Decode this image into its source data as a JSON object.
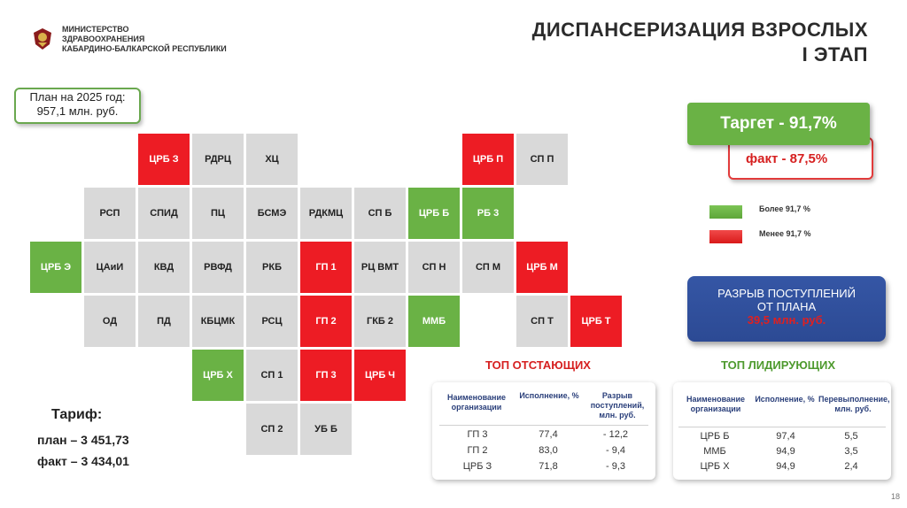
{
  "header": {
    "ministry_line1": "МИНИСТЕРСТВО",
    "ministry_line2": "ЗДРАВООХРАНЕНИЯ",
    "ministry_line3": "КАБАРДИНО-БАЛКАРСКОЙ РЕСПУБЛИКИ",
    "title_line1": "ДИСПАНСЕРИЗАЦИЯ ВЗРОСЛЫХ",
    "title_line2": "I ЭТАП"
  },
  "plan": {
    "line1": "План на 2025 год:",
    "line2": "957,1 млн. руб."
  },
  "map_cells": [
    {
      "label": "ЦРБ З",
      "status": "red"
    },
    {
      "label": "РДРЦ",
      "status": "gray"
    },
    {
      "label": "ХЦ",
      "status": "gray"
    },
    {
      "label": "ЦРБ П",
      "status": "red"
    },
    {
      "label": "СП П",
      "status": "gray"
    },
    {
      "label": "РСП",
      "status": "gray"
    },
    {
      "label": "СПИД",
      "status": "gray"
    },
    {
      "label": "ПЦ",
      "status": "gray"
    },
    {
      "label": "БСМЭ",
      "status": "gray"
    },
    {
      "label": "РДКМЦ",
      "status": "gray"
    },
    {
      "label": "СП Б",
      "status": "gray"
    },
    {
      "label": "ЦРБ Б",
      "status": "green"
    },
    {
      "label": "РБ 3",
      "status": "green"
    },
    {
      "label": "ЦРБ Э",
      "status": "green"
    },
    {
      "label": "ЦАиИ",
      "status": "gray"
    },
    {
      "label": "КВД",
      "status": "gray"
    },
    {
      "label": "РВФД",
      "status": "gray"
    },
    {
      "label": "РКБ",
      "status": "gray"
    },
    {
      "label": "ГП 1",
      "status": "red"
    },
    {
      "label": "РЦ ВМТ",
      "status": "gray"
    },
    {
      "label": "СП Н",
      "status": "gray"
    },
    {
      "label": "СП М",
      "status": "gray"
    },
    {
      "label": "ЦРБ М",
      "status": "red"
    },
    {
      "label": "ОД",
      "status": "gray"
    },
    {
      "label": "ПД",
      "status": "gray"
    },
    {
      "label": "КБЦМК",
      "status": "gray"
    },
    {
      "label": "РСЦ",
      "status": "gray"
    },
    {
      "label": "ГП 2",
      "status": "red"
    },
    {
      "label": "ГКБ 2",
      "status": "gray"
    },
    {
      "label": "ММБ",
      "status": "green"
    },
    {
      "label": "СП Т",
      "status": "gray"
    },
    {
      "label": "ЦРБ Т",
      "status": "red"
    },
    {
      "label": "ЦРБ Х",
      "status": "green"
    },
    {
      "label": "СП 1",
      "status": "gray"
    },
    {
      "label": "ГП 3",
      "status": "red"
    },
    {
      "label": "ЦРБ Ч",
      "status": "red"
    },
    {
      "label": "СП 2",
      "status": "gray"
    },
    {
      "label": "УБ Б",
      "status": "gray"
    }
  ],
  "target": {
    "label": "Таргет  -  91,7%",
    "fact": "факт  -  87,5%"
  },
  "legend": {
    "more": "Более 91,7 %",
    "less": "Менее 91,7 %"
  },
  "gap": {
    "line1": "РАЗРЫВ ПОСТУПЛЕНИЙ",
    "line2": "ОТ ПЛАНА",
    "value": "39,5 млн. руб."
  },
  "laggards": {
    "title": "ТОП ОТСТАЮЩИХ",
    "headers": [
      "Наименование организации",
      "Исполнение, %",
      "Разрыв поступлений, млн. руб."
    ],
    "rows": [
      [
        "ГП 3",
        "77,4",
        "- 12,2"
      ],
      [
        "ГП 2",
        "83,0",
        "- 9,4"
      ],
      [
        "ЦРБ З",
        "71,8",
        "- 9,3"
      ]
    ]
  },
  "leaders": {
    "title": "ТОП ЛИДИРУЮЩИХ",
    "headers": [
      "Наименование организации",
      "Исполнение, %",
      "Перевыполнение, млн. руб."
    ],
    "rows": [
      [
        "ЦРБ Б",
        "97,4",
        "5,5"
      ],
      [
        "ММБ",
        "94,9",
        "3,5"
      ],
      [
        "ЦРБ Х",
        "94,9",
        "2,4"
      ]
    ]
  },
  "tariff": {
    "title": "Тариф:",
    "plan": "план – 3 451,73",
    "fact": "факт – 3 434,01"
  },
  "colors": {
    "green": "#6ab245",
    "red": "#ed1c24",
    "gray": "#d9d9d9",
    "blue": "#2c4a94"
  },
  "page_number": "18"
}
